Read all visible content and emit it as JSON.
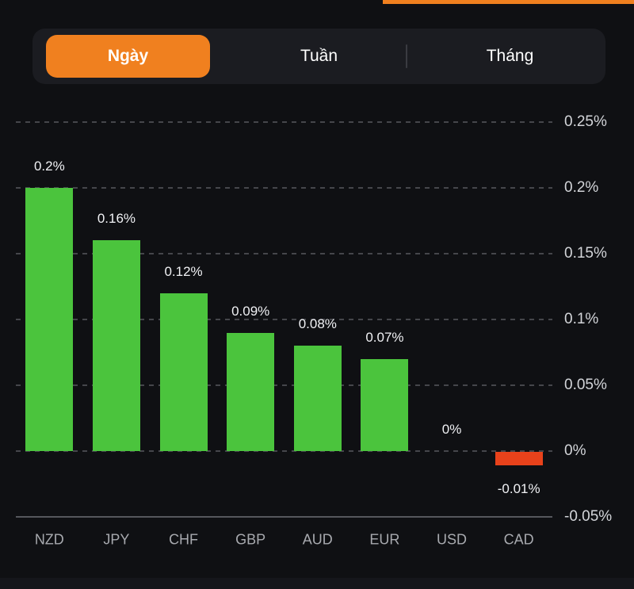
{
  "colors": {
    "accent_orange": "#f0801f",
    "positive_green": "#4bc43d",
    "negative_red": "#e8421b",
    "background": "#0f1013"
  },
  "tabs": {
    "items": [
      {
        "label": "Ngày",
        "selected": true
      },
      {
        "label": "Tuần",
        "selected": false
      },
      {
        "label": "Tháng",
        "selected": false
      }
    ]
  },
  "chart_data": {
    "type": "bar",
    "title": "",
    "categories": [
      "NZD",
      "JPY",
      "CHF",
      "GBP",
      "AUD",
      "EUR",
      "USD",
      "CAD"
    ],
    "values": [
      0.2,
      0.16,
      0.12,
      0.09,
      0.08,
      0.07,
      0,
      -0.01
    ],
    "value_labels": [
      "0.2%",
      "0.16%",
      "0.12%",
      "0.09%",
      "0.08%",
      "0.07%",
      "0%",
      "-0.01%"
    ],
    "y_ticks": [
      {
        "label": "0.25%",
        "value": 0.25
      },
      {
        "label": "0.2%",
        "value": 0.2
      },
      {
        "label": "0.15%",
        "value": 0.15
      },
      {
        "label": "0.1%",
        "value": 0.1
      },
      {
        "label": "0.05%",
        "value": 0.05
      },
      {
        "label": "0%",
        "value": 0
      },
      {
        "label": "-0.05%",
        "value": -0.05
      }
    ],
    "ylim": [
      -0.05,
      0.25
    ],
    "xlabel": "",
    "ylabel": "",
    "grid": "dashed-horizontal",
    "legend": "none",
    "positive_color": "#4bc43d",
    "negative_color": "#e8421b"
  }
}
